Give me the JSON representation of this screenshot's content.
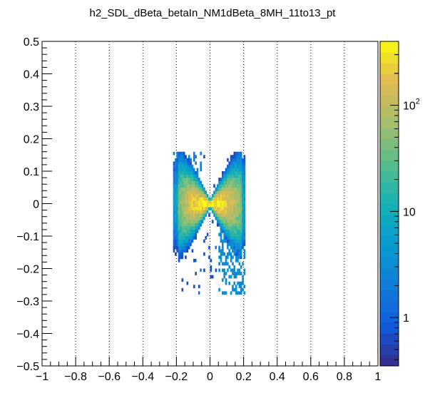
{
  "chart_data": {
    "type": "heatmap",
    "title": "h2_SDL_dBeta_betaIn_NM1dBeta_8MH_11to13_pt",
    "xlabel": "",
    "ylabel": "",
    "xlim": [
      -1,
      1
    ],
    "ylim": [
      -0.5,
      0.5
    ],
    "x_ticks": [
      {
        "value": -1,
        "label": "−1"
      },
      {
        "value": -0.8,
        "label": "−0.8"
      },
      {
        "value": -0.6,
        "label": "−0.6"
      },
      {
        "value": -0.4,
        "label": "−0.4"
      },
      {
        "value": -0.2,
        "label": "−0.2"
      },
      {
        "value": 0,
        "label": "0"
      },
      {
        "value": 0.2,
        "label": "0.2"
      },
      {
        "value": 0.4,
        "label": "0.4"
      },
      {
        "value": 0.6,
        "label": "0.6"
      },
      {
        "value": 0.8,
        "label": "0.8"
      },
      {
        "value": 1,
        "label": "1"
      }
    ],
    "y_ticks": [
      {
        "value": 0.5,
        "label": "0.5"
      },
      {
        "value": 0.4,
        "label": "0.4"
      },
      {
        "value": 0.3,
        "label": "0.3"
      },
      {
        "value": 0.2,
        "label": "0.2"
      },
      {
        "value": 0.1,
        "label": "0.1"
      },
      {
        "value": 0,
        "label": "0"
      },
      {
        "value": -0.1,
        "label": "−0.1"
      },
      {
        "value": -0.2,
        "label": "−0.2"
      },
      {
        "value": -0.3,
        "label": "−0.3"
      },
      {
        "value": -0.4,
        "label": "−0.4"
      },
      {
        "value": -0.5,
        "label": "−0.5"
      }
    ],
    "x_grid": true,
    "y_grid": false,
    "z_scale": "log",
    "z_range": [
      0.35,
      400
    ],
    "colorbar_ticks": [
      {
        "value": 1,
        "label": "1"
      },
      {
        "value": 10,
        "label": "10"
      },
      {
        "value": 100,
        "label": "10",
        "exponent": "2"
      }
    ],
    "distribution": {
      "shape": "bowtie",
      "center": [
        0,
        0
      ],
      "x_extent": [
        -0.22,
        0.22
      ],
      "y_extent": [
        -0.28,
        0.16
      ],
      "peak_count": 400
    }
  }
}
